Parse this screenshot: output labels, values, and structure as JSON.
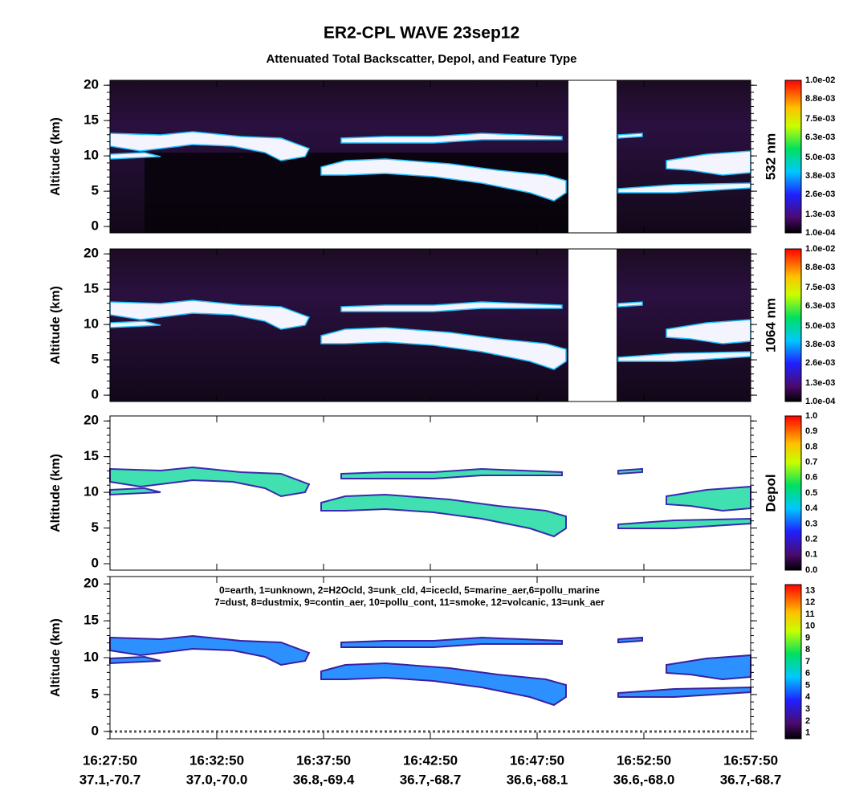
{
  "title": "ER2-CPL WAVE 23sep12",
  "subtitle": "Attenuated Total Backscatter, Depol, and Feature Type",
  "x_axis": {
    "times": [
      "16:27:50",
      "16:32:50",
      "16:37:50",
      "16:42:50",
      "16:47:50",
      "16:52:50",
      "16:57:50"
    ],
    "positions": [
      "37.1,-70.7",
      "37.0,-70.0",
      "36.8,-69.4",
      "36.7,-68.7",
      "36.6,-68.1",
      "36.6,-68.0",
      "36.7,-68.7"
    ]
  },
  "chart_data": [
    {
      "type": "heatmap",
      "ylabel": "Altitude (km)",
      "ylim": [
        -0.9,
        20.7
      ],
      "yticks": [
        0,
        5,
        10,
        15,
        20
      ],
      "colorbar": {
        "label": "532 nm",
        "clim": [
          0.0001,
          0.01
        ],
        "ticks": [
          {
            "value": 0.01,
            "label": "1.0e-02"
          },
          {
            "value": 0.0088,
            "label": "8.8e-03"
          },
          {
            "value": 0.0075,
            "label": "7.5e-03"
          },
          {
            "value": 0.0063,
            "label": "6.3e-03"
          },
          {
            "value": 0.005,
            "label": "5.0e-03"
          },
          {
            "value": 0.0038,
            "label": "3.8e-03"
          },
          {
            "value": 0.0026,
            "label": "2.6e-03"
          },
          {
            "value": 0.0013,
            "label": "1.3e-03"
          },
          {
            "value": 0.0001,
            "label": "1.0e-04"
          }
        ]
      }
    },
    {
      "type": "heatmap",
      "ylabel": "Altitude (km)",
      "ylim": [
        -0.9,
        20.7
      ],
      "yticks": [
        0,
        5,
        10,
        15,
        20
      ],
      "colorbar": {
        "label": "1064 nm",
        "clim": [
          0.0001,
          0.01
        ],
        "ticks": [
          {
            "value": 0.01,
            "label": "1.0e-02"
          },
          {
            "value": 0.0088,
            "label": "8.8e-03"
          },
          {
            "value": 0.0075,
            "label": "7.5e-03"
          },
          {
            "value": 0.0063,
            "label": "6.3e-03"
          },
          {
            "value": 0.005,
            "label": "5.0e-03"
          },
          {
            "value": 0.0038,
            "label": "3.8e-03"
          },
          {
            "value": 0.0026,
            "label": "2.6e-03"
          },
          {
            "value": 0.0013,
            "label": "1.3e-03"
          },
          {
            "value": 0.0001,
            "label": "1.0e-04"
          }
        ]
      }
    },
    {
      "type": "heatmap",
      "ylabel": "Altitude (km)",
      "ylim": [
        -0.9,
        20.7
      ],
      "yticks": [
        0,
        5,
        10,
        15,
        20
      ],
      "colorbar": {
        "label": "Depol",
        "clim": [
          0,
          1
        ],
        "ticks": [
          {
            "value": 1,
            "label": "1.0"
          },
          0.9,
          0.8,
          0.7,
          0.6,
          0.5,
          0.4,
          0.3,
          0.2,
          0.1,
          {
            "value": 0,
            "label": "0.0"
          }
        ]
      }
    },
    {
      "type": "heatmap",
      "ylabel": "Altitude (km)",
      "ylim": [
        -1,
        21
      ],
      "yticks": [
        0,
        5,
        10,
        15,
        20
      ],
      "annotation": [
        "0=earth, 1=unknown, 2=H2Ocld, 3=unk_cld, 4=icecld, 5=marine_aer,6=pollu_marine",
        "7=dust, 8=dustmix, 9=contin_aer, 10=pollu_cont, 11=smoke, 12=volcanic, 13=unk_aer"
      ],
      "colorbar": {
        "clim": [
          0.5,
          13.5
        ],
        "ticks": [
          13,
          12,
          11,
          10,
          9,
          8,
          7,
          6,
          5,
          4,
          3,
          2,
          1
        ]
      }
    }
  ]
}
